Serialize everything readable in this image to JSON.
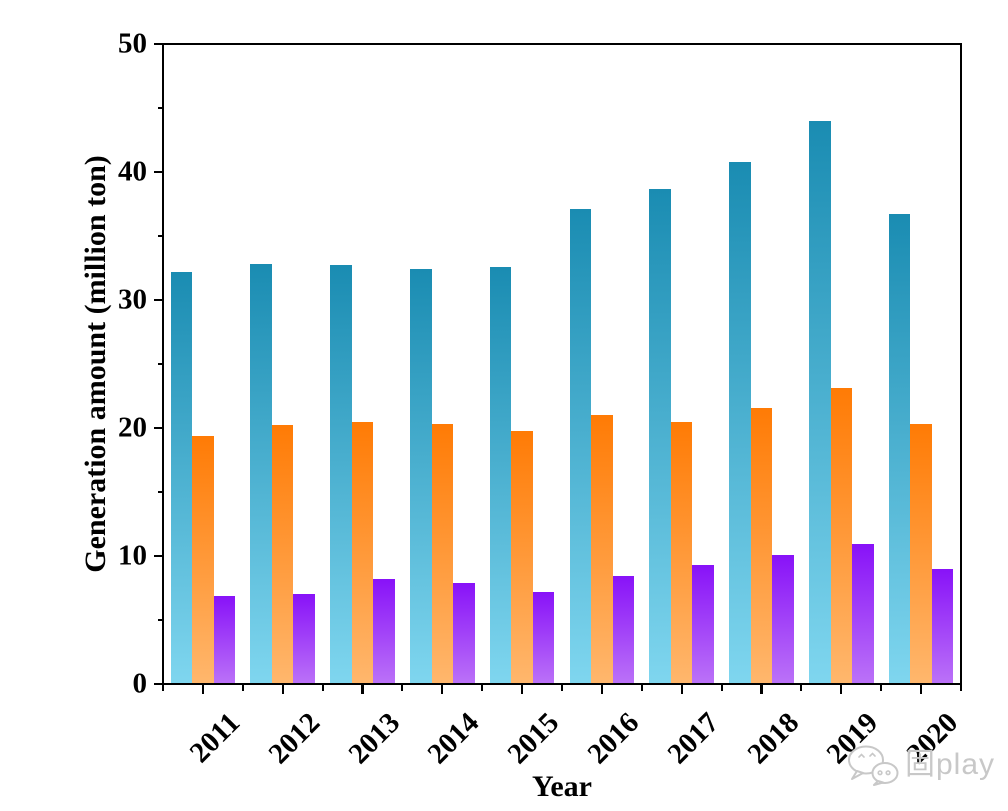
{
  "chart_data": {
    "type": "bar",
    "title": "",
    "xlabel": "Year",
    "ylabel": "Generation amount (million ton)",
    "categories": [
      "2011",
      "2012",
      "2013",
      "2014",
      "2015",
      "2016",
      "2017",
      "2018",
      "2019",
      "2020"
    ],
    "series": [
      {
        "name": "teal",
        "gradient_top": "#1a8cb2",
        "gradient_bottom": "#7fd6ef",
        "values": [
          32.2,
          32.8,
          32.7,
          32.4,
          32.6,
          37.1,
          38.7,
          40.8,
          44.0,
          36.7
        ]
      },
      {
        "name": "orange",
        "gradient_top": "#ff7b05",
        "gradient_bottom": "#ffb76d",
        "values": [
          19.4,
          20.2,
          20.5,
          20.3,
          19.8,
          21.0,
          20.5,
          21.6,
          23.1,
          20.3
        ]
      },
      {
        "name": "purple",
        "gradient_top": "#8812f8",
        "gradient_bottom": "#bb72f8",
        "values": [
          6.9,
          7.0,
          8.2,
          7.9,
          7.2,
          8.4,
          9.3,
          10.1,
          10.9,
          9.0
        ]
      }
    ],
    "ylim": [
      0,
      50
    ],
    "y_major_ticks": [
      "0",
      "10",
      "20",
      "30",
      "40",
      "50"
    ],
    "y_minor_step": 5,
    "grid": false,
    "legend": "none",
    "axis_color": "#000000"
  },
  "watermark": {
    "text": "固play",
    "icon": "wechat-icon",
    "color": "#c8c8c8"
  }
}
